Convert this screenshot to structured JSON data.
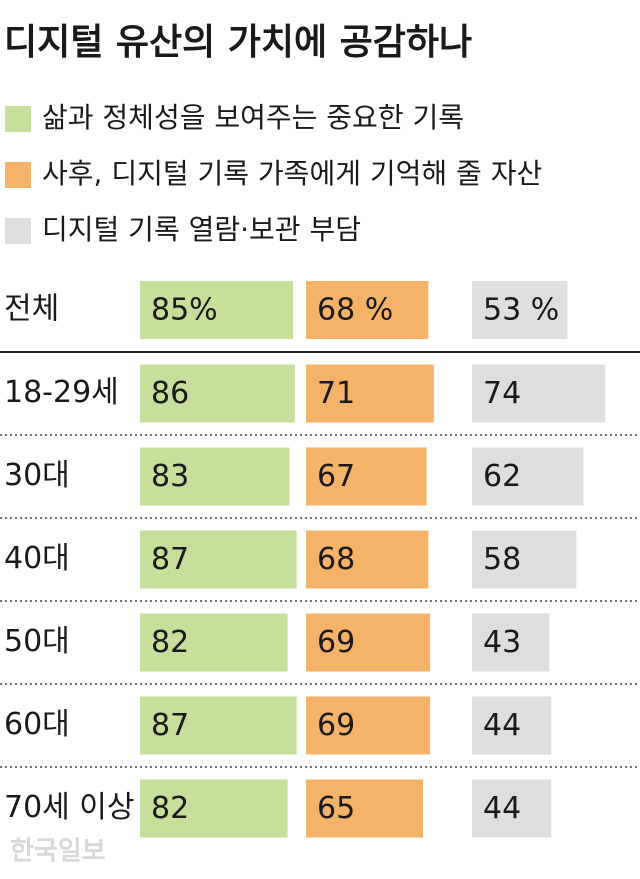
{
  "chart_data": {
    "type": "bar",
    "title": "디지털 유산의 가치에 공감하나",
    "categories": [
      "전체",
      "18-29세",
      "30대",
      "40대",
      "50대",
      "60대",
      "70세 이상"
    ],
    "series": [
      {
        "name": "삶과 정체성을 보여주는 중요한 기록",
        "color": "#c6e09b",
        "values": [
          85,
          86,
          83,
          87,
          82,
          87,
          82
        ],
        "value_labels": [
          "85%",
          "86",
          "83",
          "87",
          "82",
          "87",
          "82"
        ]
      },
      {
        "name": "사후, 디지털 기록 가족에게 기억해 줄 자산",
        "color": "#f4b368",
        "values": [
          68,
          71,
          67,
          68,
          69,
          69,
          65
        ],
        "value_labels": [
          "68 %",
          "71",
          "67",
          "68",
          "69",
          "69",
          "65"
        ]
      },
      {
        "name": "디지털 기록 열람·보관 부담",
        "color": "#dedede",
        "values": [
          53,
          74,
          62,
          58,
          43,
          44,
          44
        ],
        "value_labels": [
          "53 %",
          "74",
          "62",
          "58",
          "43",
          "44",
          "44"
        ]
      }
    ],
    "xlim": [
      0,
      100
    ],
    "source": "한국일보"
  }
}
